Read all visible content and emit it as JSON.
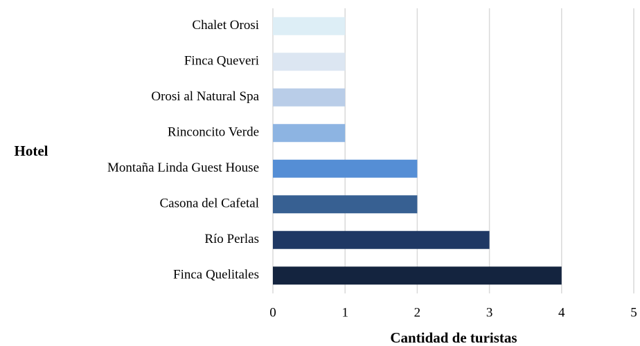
{
  "chart_data": {
    "type": "hbar",
    "categories": [
      "Chalet Orosi",
      "Finca Queveri",
      "Orosi al Natural Spa",
      "Rinconcito Verde",
      "Montaña Linda Guest House",
      "Casona del Cafetal",
      "Río Perlas",
      "Finca Quelitales"
    ],
    "values": [
      1,
      1,
      1,
      1,
      2,
      2,
      3,
      4
    ],
    "colors": [
      "#ddeef6",
      "#dce6f2",
      "#b9cde8",
      "#8db4e2",
      "#558ed5",
      "#376092",
      "#1f3864",
      "#14243f"
    ],
    "xlim": [
      0,
      5
    ],
    "xticks": [
      0,
      1,
      2,
      3,
      4,
      5
    ],
    "grid": true,
    "xlabel": "Cantidad de turistas",
    "ylabel": "Hotel"
  }
}
